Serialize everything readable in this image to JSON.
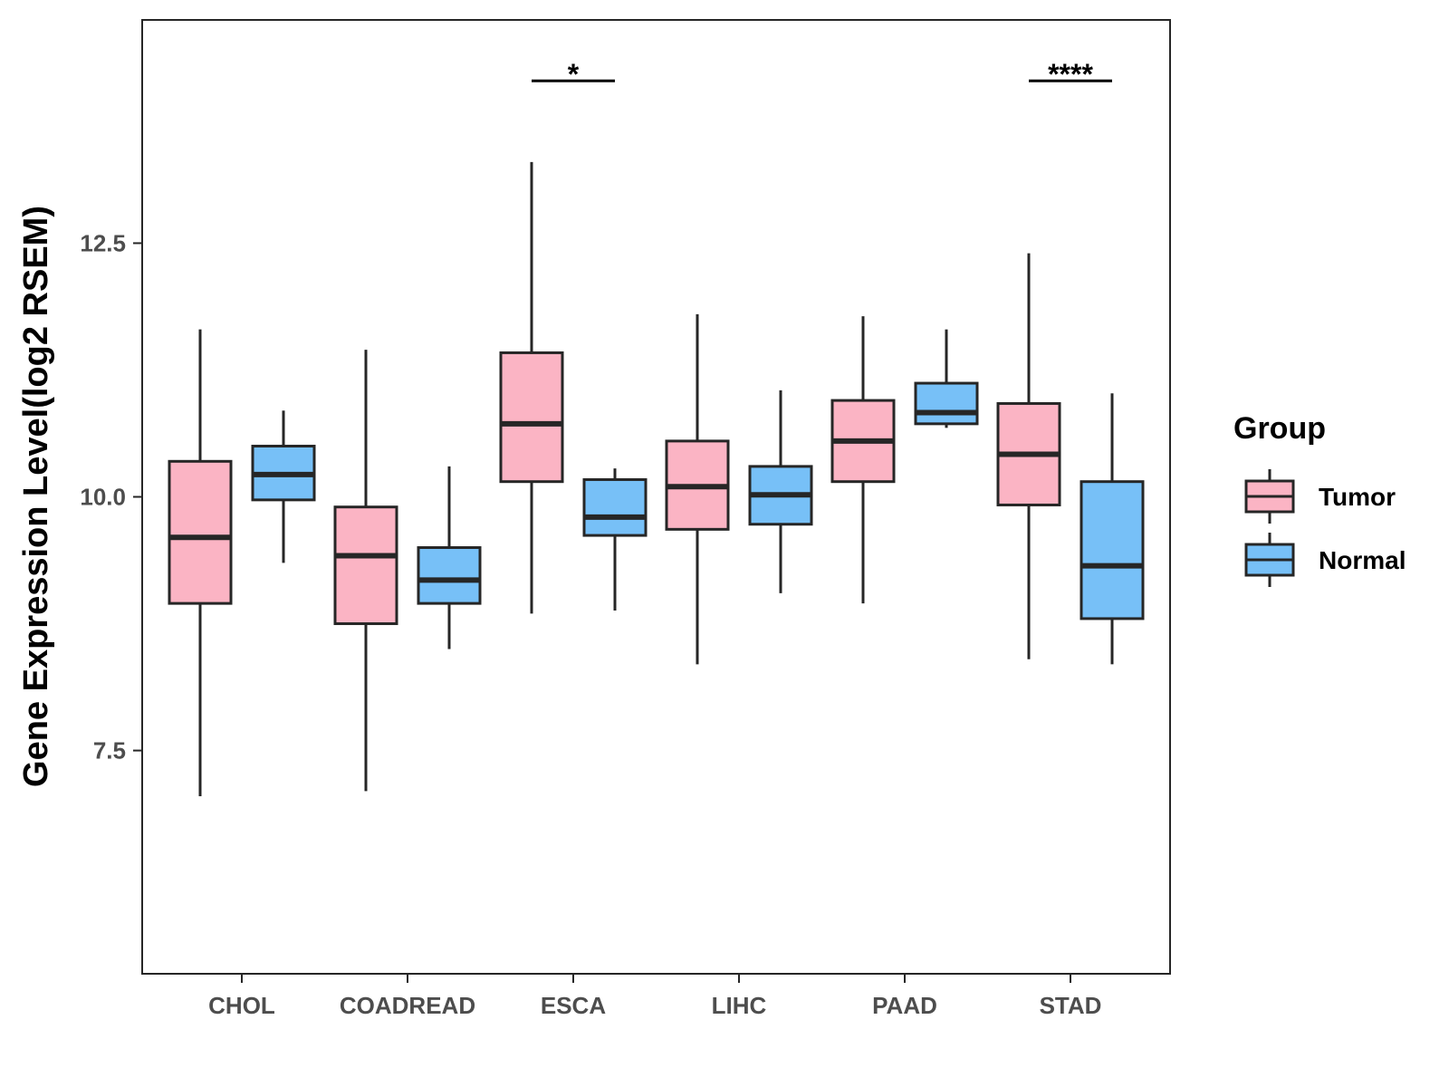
{
  "chart_data": {
    "type": "boxplot",
    "title": "",
    "xlabel": "",
    "ylabel": "Gene Expression Level(log2 RSEM)",
    "ylim": [
      5.3,
      14.7
    ],
    "yticks": [
      7.5,
      10.0,
      12.5
    ],
    "ytick_labels": [
      "7.5",
      "10.0",
      "12.5"
    ],
    "grid": false,
    "legend_position": "right",
    "categories": [
      "CHOL",
      "COADREAD",
      "ESCA",
      "LIHC",
      "PAAD",
      "STAD"
    ],
    "legend": {
      "title": "Group",
      "entries": [
        "Tumor",
        "Normal"
      ]
    },
    "colors": {
      "Tumor": "#fbb4c4",
      "Normal": "#77c0f7",
      "stroke": "#262626"
    },
    "series": [
      {
        "name": "Tumor",
        "boxes": [
          {
            "low": 7.05,
            "q1": 8.95,
            "median": 9.6,
            "q3": 10.35,
            "high": 11.65
          },
          {
            "low": 7.1,
            "q1": 8.75,
            "median": 9.42,
            "q3": 9.9,
            "high": 11.45
          },
          {
            "low": 8.85,
            "q1": 10.15,
            "median": 10.72,
            "q3": 11.42,
            "high": 13.3
          },
          {
            "low": 8.35,
            "q1": 9.68,
            "median": 10.1,
            "q3": 10.55,
            "high": 11.8
          },
          {
            "low": 8.95,
            "q1": 10.15,
            "median": 10.55,
            "q3": 10.95,
            "high": 11.78
          },
          {
            "low": 8.4,
            "q1": 9.92,
            "median": 10.42,
            "q3": 10.92,
            "high": 12.4
          }
        ]
      },
      {
        "name": "Normal",
        "boxes": [
          {
            "low": 9.35,
            "q1": 9.97,
            "median": 10.22,
            "q3": 10.5,
            "high": 10.85
          },
          {
            "low": 8.5,
            "q1": 8.95,
            "median": 9.18,
            "q3": 9.5,
            "high": 10.3
          },
          {
            "low": 8.88,
            "q1": 9.62,
            "median": 9.8,
            "q3": 10.17,
            "high": 10.28
          },
          {
            "low": 9.05,
            "q1": 9.73,
            "median": 10.02,
            "q3": 10.3,
            "high": 11.05
          },
          {
            "low": 10.68,
            "q1": 10.72,
            "median": 10.83,
            "q3": 11.12,
            "high": 11.65
          },
          {
            "low": 8.35,
            "q1": 8.8,
            "median": 9.32,
            "q3": 10.15,
            "high": 11.02
          }
        ]
      }
    ],
    "annotations": [
      {
        "category": "ESCA",
        "label": "*",
        "y": 14.1
      },
      {
        "category": "STAD",
        "label": "****",
        "y": 14.1
      }
    ]
  }
}
